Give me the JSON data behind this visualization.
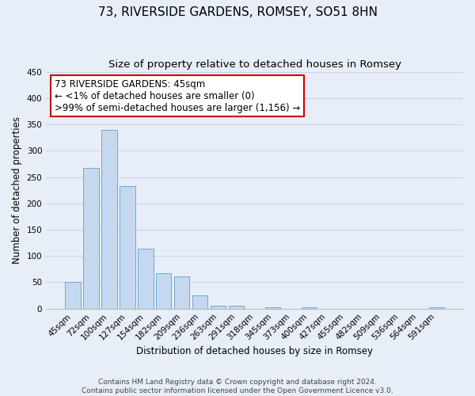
{
  "title": "73, RIVERSIDE GARDENS, ROMSEY, SO51 8HN",
  "subtitle": "Size of property relative to detached houses in Romsey",
  "xlabel": "Distribution of detached houses by size in Romsey",
  "ylabel": "Number of detached properties",
  "categories": [
    "45sqm",
    "72sqm",
    "100sqm",
    "127sqm",
    "154sqm",
    "182sqm",
    "209sqm",
    "236sqm",
    "263sqm",
    "291sqm",
    "318sqm",
    "345sqm",
    "373sqm",
    "400sqm",
    "427sqm",
    "455sqm",
    "482sqm",
    "509sqm",
    "536sqm",
    "564sqm",
    "591sqm"
  ],
  "bar_values": [
    50,
    267,
    340,
    232,
    114,
    68,
    62,
    25,
    6,
    6,
    0,
    3,
    0,
    3,
    0,
    0,
    0,
    0,
    0,
    0,
    3
  ],
  "bar_color": "#c5d8f0",
  "bar_edge_color": "#6aaad4",
  "ylim": [
    0,
    450
  ],
  "yticks": [
    0,
    50,
    100,
    150,
    200,
    250,
    300,
    350,
    400,
    450
  ],
  "grid_color": "#c8d4e8",
  "background_color": "#e8eef8",
  "annotation_title": "73 RIVERSIDE GARDENS: 45sqm",
  "annotation_line1": "← <1% of detached houses are smaller (0)",
  "annotation_line2": ">99% of semi-detached houses are larger (1,156) →",
  "annotation_box_color": "#ffffff",
  "annotation_border_color": "#cc0000",
  "footer_line1": "Contains HM Land Registry data © Crown copyright and database right 2024.",
  "footer_line2": "Contains public sector information licensed under the Open Government Licence v3.0.",
  "title_fontsize": 11,
  "subtitle_fontsize": 9.5,
  "axis_label_fontsize": 8.5,
  "tick_fontsize": 7.5,
  "annotation_fontsize": 8.5,
  "footer_fontsize": 6.5
}
